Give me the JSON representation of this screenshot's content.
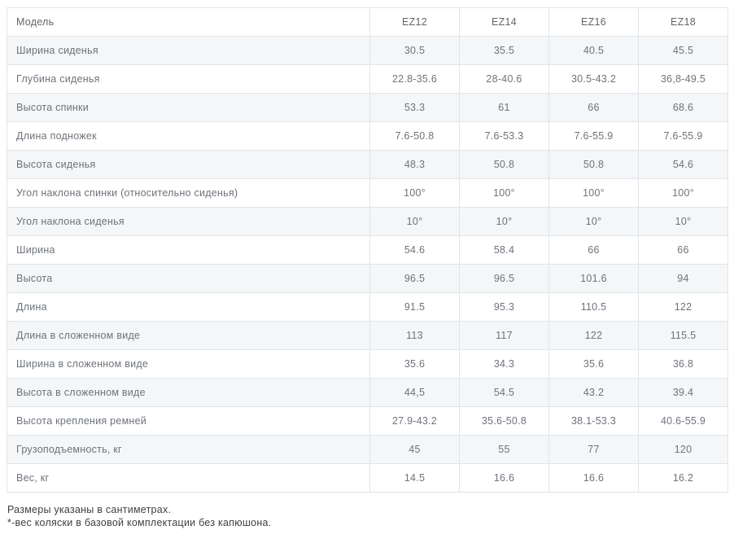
{
  "colors": {
    "border": "#e1e5e9",
    "stripe_background": "#f4f6f7",
    "cell_text": "#6e737a",
    "header_text": "#60656b",
    "footnote_text": "#3f3f3f",
    "page_background": "#ffffff"
  },
  "table": {
    "header": {
      "label": "Модель",
      "models": [
        "EZ12",
        "EZ14",
        "EZ16",
        "EZ18"
      ]
    },
    "rows": [
      {
        "label": "Ширина сиденья",
        "values": [
          "30.5",
          "35.5",
          "40.5",
          "45.5"
        ]
      },
      {
        "label": "Глубина сиденья",
        "values": [
          "22.8-35.6",
          "28-40.6",
          "30.5-43.2",
          "36,8-49.5"
        ]
      },
      {
        "label": "Высота спинки",
        "values": [
          "53.3",
          "61",
          "66",
          "68.6"
        ]
      },
      {
        "label": "Длина подножек",
        "values": [
          "7.6-50.8",
          "7.6-53.3",
          "7.6-55.9",
          "7.6-55.9"
        ]
      },
      {
        "label": "Высота сиденья",
        "values": [
          "48.3",
          "50.8",
          "50.8",
          "54.6"
        ]
      },
      {
        "label": "Угол наклона спинки (относительно сиденья)",
        "values": [
          "100°",
          "100°",
          "100°",
          "100°"
        ]
      },
      {
        "label": "Угол наклона сиденья",
        "values": [
          "10°",
          "10°",
          "10°",
          "10°"
        ]
      },
      {
        "label": "Ширина",
        "values": [
          "54.6",
          "58.4",
          "66",
          "66"
        ]
      },
      {
        "label": "Высота",
        "values": [
          "96.5",
          "96.5",
          "101.6",
          "94"
        ]
      },
      {
        "label": "Длина",
        "values": [
          "91.5",
          "95.3",
          "110.5",
          "122"
        ]
      },
      {
        "label": "Длина в сложенном виде",
        "values": [
          "113",
          "117",
          "122",
          "115.5"
        ]
      },
      {
        "label": "Ширина в сложенном виде",
        "values": [
          "35.6",
          "34.3",
          "35.6",
          "36.8"
        ]
      },
      {
        "label": "Высота в сложенном виде",
        "values": [
          "44,5",
          "54.5",
          "43.2",
          "39.4"
        ]
      },
      {
        "label": "Высота крепления ремней",
        "values": [
          "27.9-43.2",
          "35.6-50.8",
          "38.1-53.3",
          "40.6-55.9"
        ]
      },
      {
        "label": "Грузоподъемность, кг",
        "values": [
          "45",
          "55",
          "77",
          "120"
        ]
      },
      {
        "label": "Вес, кг",
        "values": [
          "14.5",
          "16.6",
          "16.6",
          "16.2"
        ]
      }
    ],
    "footnotes": [
      "Размеры указаны в сантиметрах.",
      "*-вес коляски в базовой комплектации без капюшона."
    ]
  }
}
